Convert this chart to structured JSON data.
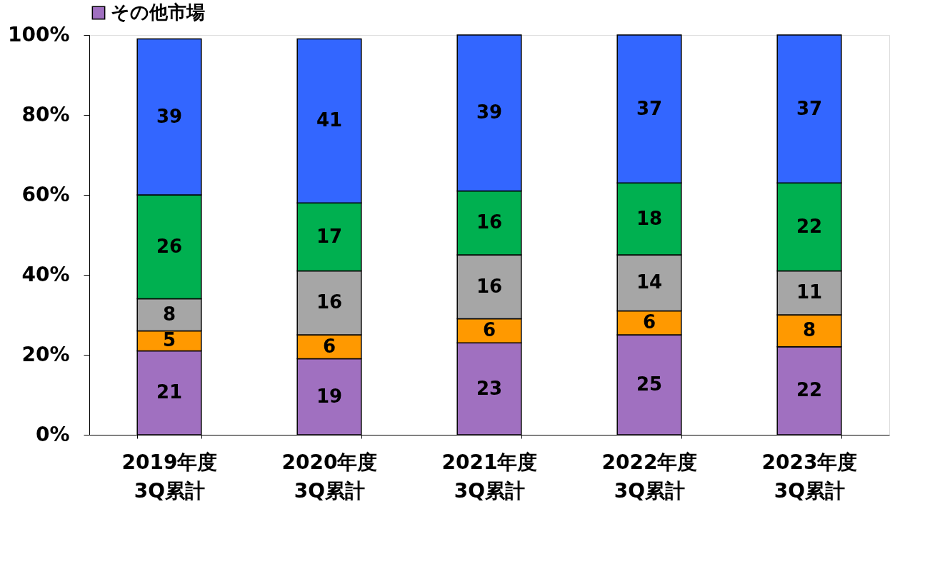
{
  "chart_data": {
    "type": "bar",
    "stacked": true,
    "data_labels": true,
    "grid": false,
    "legend": "top",
    "categories": [
      "2019年度\n3Q累計",
      "2020年度\n3Q累計",
      "2021年度\n3Q累計",
      "2022年度\n3Q累計",
      "2023年度\n3Q累計"
    ],
    "ylim": [
      0,
      100
    ],
    "yticks": [
      {
        "value": 0,
        "label": "0%"
      },
      {
        "value": 20,
        "label": "20%"
      },
      {
        "value": 40,
        "label": "40%"
      },
      {
        "value": 60,
        "label": "60%"
      },
      {
        "value": 80,
        "label": "80%"
      },
      {
        "value": 100,
        "label": "100%"
      }
    ],
    "series": [
      {
        "name": "その他市場",
        "color": "#a070c0",
        "values": [
          21,
          19,
          23,
          25,
          22
        ]
      },
      {
        "color": "#ff9900",
        "values": [
          5,
          6,
          6,
          6,
          8
        ]
      },
      {
        "color": "#a6a6a6",
        "values": [
          8,
          16,
          16,
          14,
          11
        ]
      },
      {
        "color": "#00b050",
        "values": [
          26,
          17,
          16,
          18,
          22
        ]
      },
      {
        "color": "#3366ff",
        "values": [
          39,
          41,
          39,
          37,
          37
        ]
      }
    ]
  }
}
